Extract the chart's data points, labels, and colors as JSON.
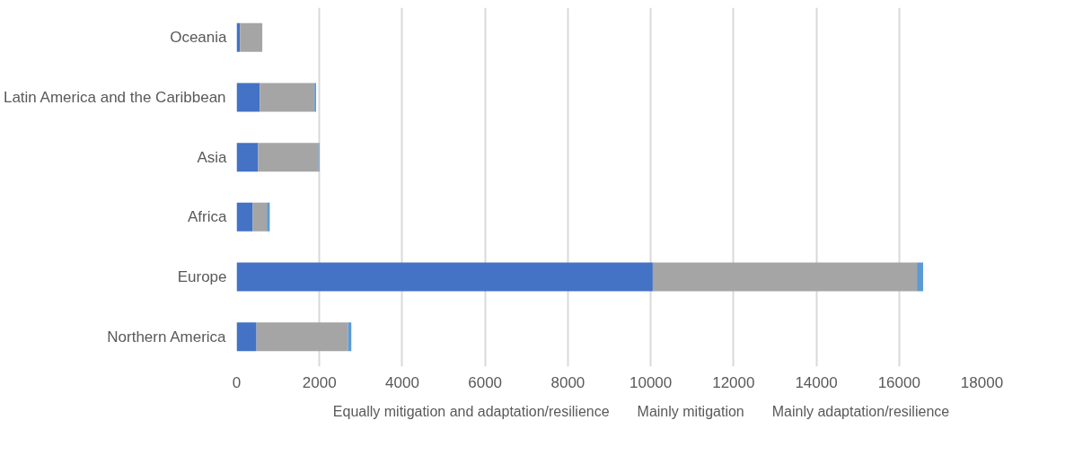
{
  "chart_data": {
    "type": "bar",
    "orientation": "horizontal",
    "stacked": true,
    "categories": [
      "Oceania",
      "Latin America and the Caribbean",
      "Asia",
      "Africa",
      "Europe",
      "Northern America"
    ],
    "series": [
      {
        "name": "Equally mitigation and adaptation/resilience",
        "color": "#4472c4",
        "values": [
          80,
          560,
          520,
          390,
          10050,
          480
        ]
      },
      {
        "name": "Mainly mitigation",
        "color": "#a5a5a5",
        "values": [
          540,
          1320,
          1460,
          340,
          6380,
          2210
        ]
      },
      {
        "name": "Mainly adaptation/resilience",
        "color": "#5b9bd5",
        "values": [
          null,
          40,
          20,
          70,
          150,
          80
        ]
      }
    ],
    "xlim": [
      0,
      18000
    ],
    "xticks": [
      0,
      2000,
      4000,
      6000,
      8000,
      10000,
      12000,
      14000,
      16000,
      18000
    ],
    "grid": "x",
    "legend": "bottom"
  }
}
